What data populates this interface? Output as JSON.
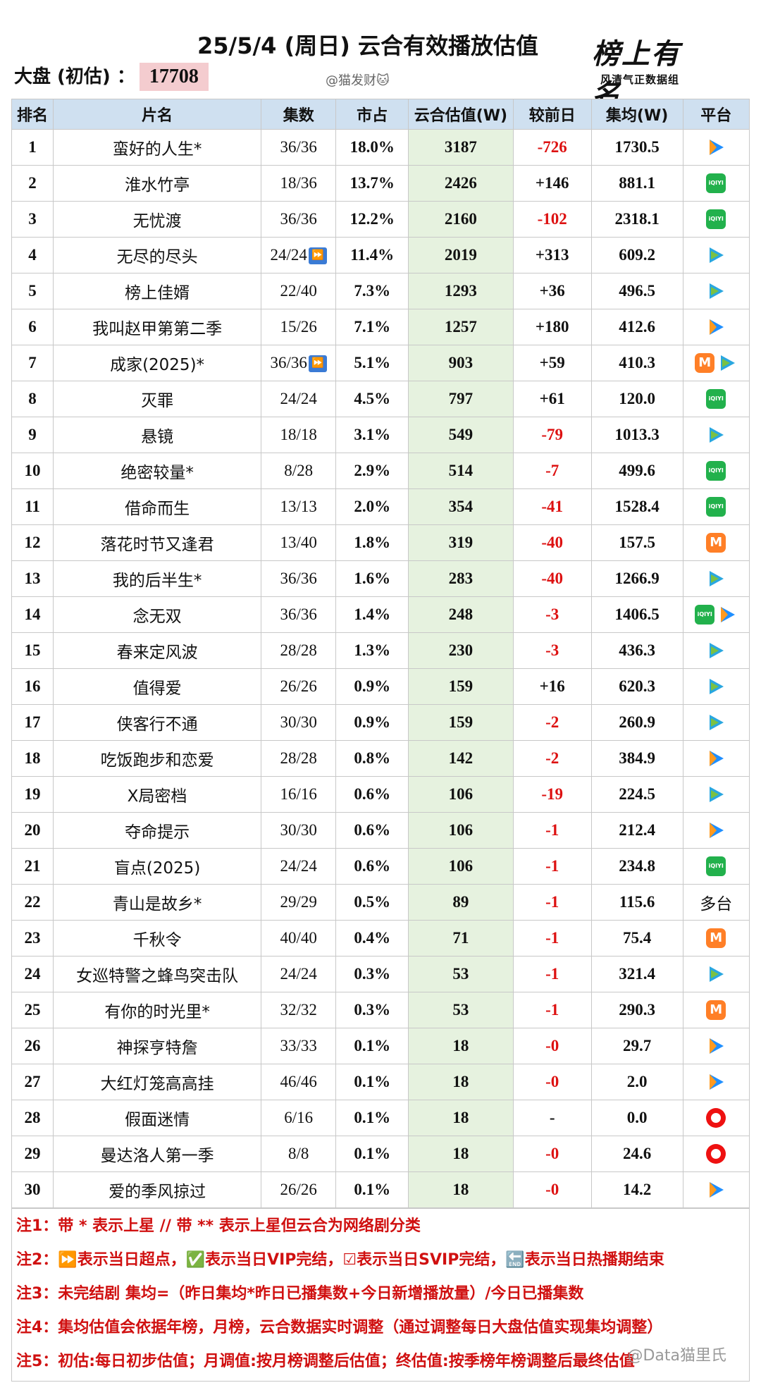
{
  "header": {
    "title": "25/5/4 (周日) 云合有效播放估值",
    "dapan_label": "大盘  (初估) ：",
    "dapan_value": "17708",
    "handle": "@猫发财🐱",
    "logo_main": "榜上有名",
    "logo_sub": "风清气正数据组"
  },
  "columns": [
    "排名",
    "片名",
    "集数",
    "市占",
    "云合估值(W)",
    "较前日",
    "集均(W)",
    "平台"
  ],
  "rows": [
    {
      "rank": "1",
      "name": "蛮好的人生*",
      "eps": "36/36",
      "share": "18.0%",
      "est": "3187",
      "chg": "-726",
      "neg": true,
      "avg": "1730.5",
      "plat": [
        "tencent"
      ]
    },
    {
      "rank": "2",
      "name": "淮水竹亭",
      "eps": "18/36",
      "share": "13.7%",
      "est": "2426",
      "chg": "+146",
      "neg": false,
      "avg": "881.1",
      "plat": [
        "iqiyi"
      ]
    },
    {
      "rank": "3",
      "name": "无忧渡",
      "eps": "36/36",
      "share": "12.2%",
      "est": "2160",
      "chg": "-102",
      "neg": true,
      "avg": "2318.1",
      "plat": [
        "iqiyi"
      ]
    },
    {
      "rank": "4",
      "name": "无尽的尽头",
      "eps": "24/24",
      "ff": true,
      "share": "11.4%",
      "est": "2019",
      "chg": "+313",
      "neg": false,
      "avg": "609.2",
      "plat": [
        "bili"
      ]
    },
    {
      "rank": "5",
      "name": "榜上佳婿",
      "eps": "22/40",
      "share": "7.3%",
      "est": "1293",
      "chg": "+36",
      "neg": false,
      "avg": "496.5",
      "plat": [
        "bili"
      ]
    },
    {
      "rank": "6",
      "name": "我叫赵甲第第二季",
      "eps": "15/26",
      "share": "7.1%",
      "est": "1257",
      "chg": "+180",
      "neg": false,
      "avg": "412.6",
      "plat": [
        "tencent"
      ]
    },
    {
      "rank": "7",
      "name": "成家(2025)*",
      "eps": "36/36",
      "ff": true,
      "share": "5.1%",
      "est": "903",
      "chg": "+59",
      "neg": false,
      "avg": "410.3",
      "plat": [
        "mango",
        "bili"
      ]
    },
    {
      "rank": "8",
      "name": "灭罪",
      "eps": "24/24",
      "share": "4.5%",
      "est": "797",
      "chg": "+61",
      "neg": false,
      "avg": "120.0",
      "plat": [
        "iqiyi"
      ]
    },
    {
      "rank": "9",
      "name": "悬镜",
      "eps": "18/18",
      "share": "3.1%",
      "est": "549",
      "chg": "-79",
      "neg": true,
      "avg": "1013.3",
      "plat": [
        "bili"
      ]
    },
    {
      "rank": "10",
      "name": "绝密较量*",
      "eps": "8/28",
      "share": "2.9%",
      "est": "514",
      "chg": "-7",
      "neg": true,
      "avg": "499.6",
      "plat": [
        "iqiyi"
      ]
    },
    {
      "rank": "11",
      "name": "借命而生",
      "eps": "13/13",
      "share": "2.0%",
      "est": "354",
      "chg": "-41",
      "neg": true,
      "avg": "1528.4",
      "plat": [
        "iqiyi"
      ]
    },
    {
      "rank": "12",
      "name": "落花时节又逢君",
      "eps": "13/40",
      "share": "1.8%",
      "est": "319",
      "chg": "-40",
      "neg": true,
      "avg": "157.5",
      "plat": [
        "mango"
      ]
    },
    {
      "rank": "13",
      "name": "我的后半生*",
      "eps": "36/36",
      "share": "1.6%",
      "est": "283",
      "chg": "-40",
      "neg": true,
      "avg": "1266.9",
      "plat": [
        "bili"
      ]
    },
    {
      "rank": "14",
      "name": "念无双",
      "eps": "36/36",
      "share": "1.4%",
      "est": "248",
      "chg": "-3",
      "neg": true,
      "avg": "1406.5",
      "plat": [
        "iqiyi",
        "tencent"
      ]
    },
    {
      "rank": "15",
      "name": "春来定风波",
      "eps": "28/28",
      "share": "1.3%",
      "est": "230",
      "chg": "-3",
      "neg": true,
      "avg": "436.3",
      "plat": [
        "bili"
      ]
    },
    {
      "rank": "16",
      "name": "值得爱",
      "eps": "26/26",
      "share": "0.9%",
      "est": "159",
      "chg": "+16",
      "neg": false,
      "avg": "620.3",
      "plat": [
        "bili"
      ]
    },
    {
      "rank": "17",
      "name": "侠客行不通",
      "eps": "30/30",
      "share": "0.9%",
      "est": "159",
      "chg": "-2",
      "neg": true,
      "avg": "260.9",
      "plat": [
        "bili"
      ]
    },
    {
      "rank": "18",
      "name": "吃饭跑步和恋爱",
      "eps": "28/28",
      "share": "0.8%",
      "est": "142",
      "chg": "-2",
      "neg": true,
      "avg": "384.9",
      "plat": [
        "tencent"
      ]
    },
    {
      "rank": "19",
      "name": "X局密档",
      "eps": "16/16",
      "share": "0.6%",
      "est": "106",
      "chg": "-19",
      "neg": true,
      "avg": "224.5",
      "plat": [
        "bili"
      ]
    },
    {
      "rank": "20",
      "name": "夺命提示",
      "eps": "30/30",
      "share": "0.6%",
      "est": "106",
      "chg": "-1",
      "neg": true,
      "avg": "212.4",
      "plat": [
        "tencent"
      ]
    },
    {
      "rank": "21",
      "name": "盲点(2025)",
      "eps": "24/24",
      "share": "0.6%",
      "est": "106",
      "chg": "-1",
      "neg": true,
      "avg": "234.8",
      "plat": [
        "iqiyi"
      ]
    },
    {
      "rank": "22",
      "name": "青山是故乡*",
      "eps": "29/29",
      "share": "0.5%",
      "est": "89",
      "chg": "-1",
      "neg": true,
      "avg": "115.6",
      "plat": [],
      "plat_text": "多台"
    },
    {
      "rank": "23",
      "name": "千秋令",
      "eps": "40/40",
      "share": "0.4%",
      "est": "71",
      "chg": "-1",
      "neg": true,
      "avg": "75.4",
      "plat": [
        "mango"
      ]
    },
    {
      "rank": "24",
      "name": "女巡特警之蜂鸟突击队",
      "eps": "24/24",
      "share": "0.3%",
      "est": "53",
      "chg": "-1",
      "neg": true,
      "avg": "321.4",
      "plat": [
        "bili"
      ]
    },
    {
      "rank": "25",
      "name": "有你的时光里*",
      "eps": "32/32",
      "share": "0.3%",
      "est": "53",
      "chg": "-1",
      "neg": true,
      "avg": "290.3",
      "plat": [
        "mango"
      ]
    },
    {
      "rank": "26",
      "name": "神探亨特詹",
      "eps": "33/33",
      "share": "0.1%",
      "est": "18",
      "chg": "-0",
      "neg": true,
      "avg": "29.7",
      "plat": [
        "tencent"
      ]
    },
    {
      "rank": "27",
      "name": "大红灯笼高高挂",
      "eps": "46/46",
      "share": "0.1%",
      "est": "18",
      "chg": "-0",
      "neg": true,
      "avg": "2.0",
      "plat": [
        "tencent"
      ]
    },
    {
      "rank": "28",
      "name": "假面迷情",
      "eps": "6/16",
      "share": "0.1%",
      "est": "18",
      "chg": "-",
      "neg": false,
      "avg": "0.0",
      "plat": [
        "youku"
      ]
    },
    {
      "rank": "29",
      "name": "曼达洛人第一季",
      "eps": "8/8",
      "share": "0.1%",
      "est": "18",
      "chg": "-0",
      "neg": true,
      "avg": "24.6",
      "plat": [
        "youku"
      ]
    },
    {
      "rank": "30",
      "name": "爱的季风掠过",
      "eps": "26/26",
      "share": "0.1%",
      "est": "18",
      "chg": "-0",
      "neg": true,
      "avg": "14.2",
      "plat": [
        "tencent"
      ]
    }
  ],
  "notes": [
    "注1：带 * 表示上星 // 带 ** 表示上星但云合为网络剧分类",
    "注2：⏩表示当日超点，✅表示当日VIP完结，☑表示当日SVIP完结，🔚表示当日热播期结束",
    "注3：未完结剧 集均=（昨日集均*昨日已播集数+今日新增播放量）/今日已播集数",
    "注4：集均估值会依据年榜，月榜，云合数据实时调整（通过调整每日大盘估值实现集均调整）",
    "注5：初估:每日初步估值；月调值:按月榜调整后估值；终估值:按季榜年榜调整后最终估值"
  ],
  "watermark": "@Data猫里氏",
  "colors": {
    "header_bg": "#cfe0f0",
    "estimate_bg": "#e6f2df",
    "negative": "#d11111",
    "note_red": "#d01010",
    "highlight": "#f4cccf"
  }
}
